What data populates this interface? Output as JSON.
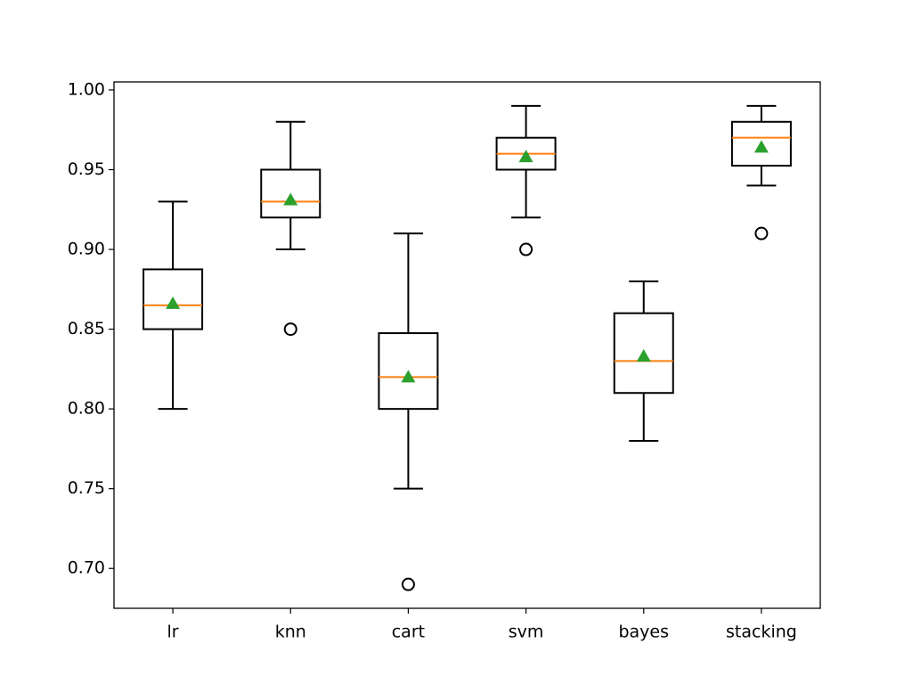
{
  "chart_data": {
    "type": "box",
    "title": "",
    "xlabel": "",
    "ylabel": "",
    "ylim": [
      0.675,
      1.005
    ],
    "yticks": [
      "0.70",
      "0.75",
      "0.80",
      "0.85",
      "0.90",
      "0.95",
      "1.00"
    ],
    "categories": [
      "lr",
      "knn",
      "cart",
      "svm",
      "bayes",
      "stacking"
    ],
    "boxes": [
      {
        "name": "lr",
        "whisker_low": 0.8,
        "q1": 0.85,
        "median": 0.865,
        "q3": 0.8875,
        "whisker_high": 0.93,
        "mean": 0.866,
        "outliers": []
      },
      {
        "name": "knn",
        "whisker_low": 0.9,
        "q1": 0.92,
        "median": 0.93,
        "q3": 0.95,
        "whisker_high": 0.98,
        "mean": 0.931,
        "outliers": [
          0.85
        ]
      },
      {
        "name": "cart",
        "whisker_low": 0.75,
        "q1": 0.8,
        "median": 0.82,
        "q3": 0.8475,
        "whisker_high": 0.91,
        "mean": 0.82,
        "outliers": [
          0.69
        ]
      },
      {
        "name": "svm",
        "whisker_low": 0.92,
        "q1": 0.95,
        "median": 0.96,
        "q3": 0.97,
        "whisker_high": 0.99,
        "mean": 0.958,
        "outliers": [
          0.9
        ]
      },
      {
        "name": "bayes",
        "whisker_low": 0.78,
        "q1": 0.81,
        "median": 0.83,
        "q3": 0.86,
        "whisker_high": 0.88,
        "mean": 0.833,
        "outliers": []
      },
      {
        "name": "stacking",
        "whisker_low": 0.94,
        "q1": 0.9525,
        "median": 0.97,
        "q3": 0.98,
        "whisker_high": 0.99,
        "mean": 0.964,
        "outliers": [
          0.91
        ]
      }
    ],
    "colors": {
      "box": "#000000",
      "median": "#ff7f0e",
      "mean": "#2ca02c",
      "outlier": "#000000"
    },
    "grid": false,
    "legend": "none"
  }
}
